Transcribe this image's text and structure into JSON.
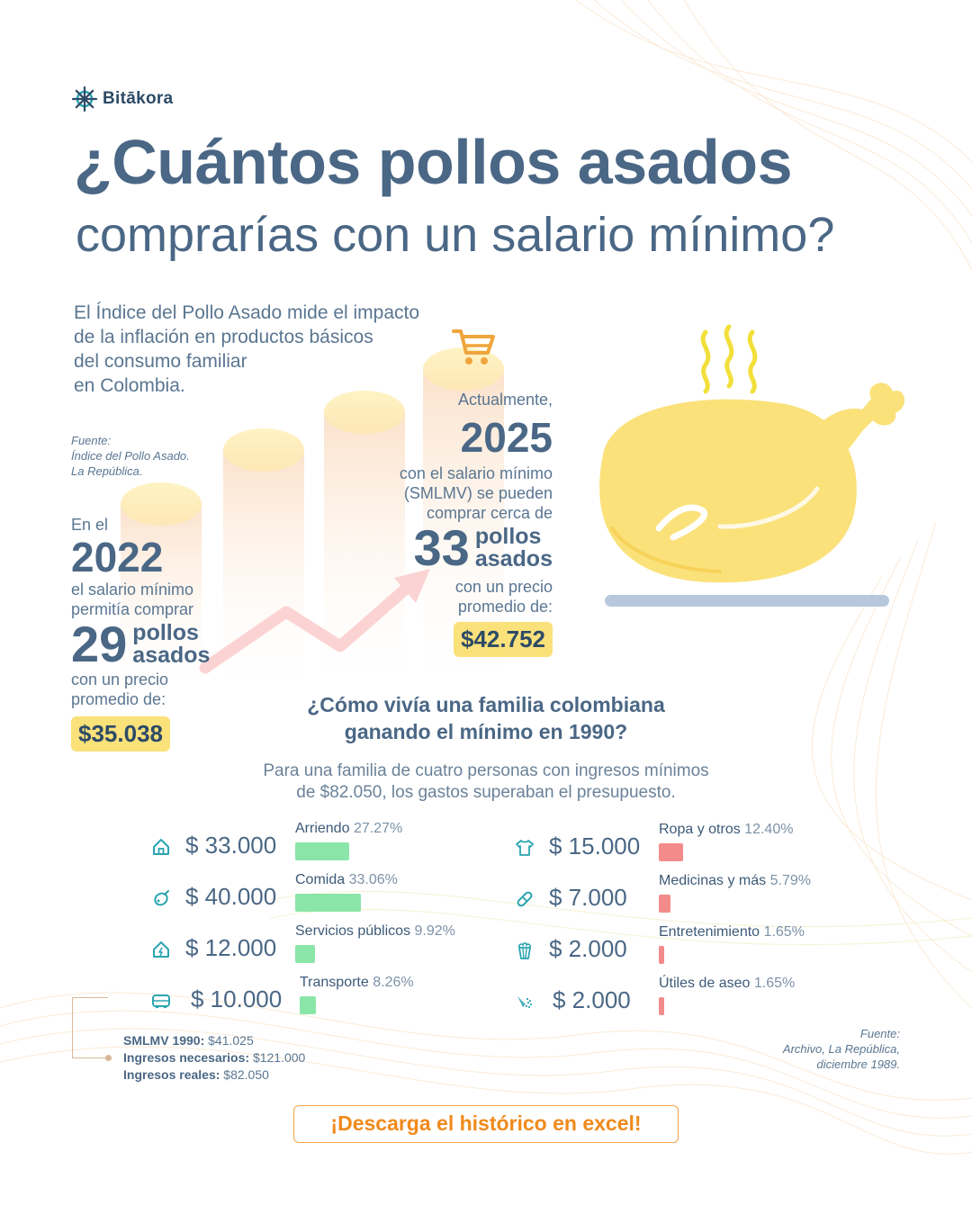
{
  "brand": {
    "name": "Bitākora"
  },
  "title": {
    "line1": "¿Cuántos pollos asados",
    "line2": "comprarías con un salario mínimo?"
  },
  "intro": [
    "El Índice del Pollo Asado mide el impacto",
    "de la inflación en productos básicos",
    "del consumo familiar",
    "en Colombia."
  ],
  "source_top": {
    "label": "Fuente:",
    "line1": "Índice del Pollo Asado.",
    "line2": "La República."
  },
  "y2022": {
    "prefix": "En el",
    "year": "2022",
    "text1": "el salario mínimo",
    "text2": "permitía comprar",
    "count": "29",
    "label1": "pollos",
    "label2": "asados",
    "price_text1": "con un precio",
    "price_text2": "promedio de:",
    "price": "$35.038"
  },
  "y2025": {
    "prefix": "Actualmente,",
    "year": "2025",
    "text1": "con el salario mínimo",
    "text2": "(SMLMV) se pueden",
    "text3": "comprar cerca de",
    "count": "33",
    "label1": "pollos",
    "label2": "asados",
    "price_text1": "con un precio",
    "price_text2": "promedio de:",
    "price": "$42.752"
  },
  "question": {
    "line1": "¿Cómo vivía una familia colombiana",
    "line2": "ganando el mínimo en 1990?",
    "sub1": "Para una familia de cuatro personas con ingresos mínimos",
    "sub2": "de $82.050, los gastos superaban el presupuesto."
  },
  "expenses": {
    "left": [
      {
        "icon": "house-icon",
        "amount": "$ 33.000",
        "category": "Arriendo",
        "percent": "27.27%",
        "value": 27.27
      },
      {
        "icon": "food-icon",
        "amount": "$ 40.000",
        "category": "Comida",
        "percent": "33.06%",
        "value": 33.06
      },
      {
        "icon": "utilities-icon",
        "amount": "$ 12.000",
        "category": "Servicios públicos",
        "percent": "9.92%",
        "value": 9.92
      },
      {
        "icon": "bus-icon",
        "amount": "$ 10.000",
        "category": "Transporte",
        "percent": "8.26%",
        "value": 8.26
      }
    ],
    "right": [
      {
        "icon": "shirt-icon",
        "amount": "$ 15.000",
        "category": "Ropa y otros",
        "percent": "12.40%",
        "value": 12.4
      },
      {
        "icon": "pill-icon",
        "amount": "$ 7.000",
        "category": "Medicinas y más",
        "percent": "5.79%",
        "value": 5.79
      },
      {
        "icon": "popcorn-icon",
        "amount": "$ 2.000",
        "category": "Entretenimiento",
        "percent": "1.65%",
        "value": 1.65
      },
      {
        "icon": "spray-icon",
        "amount": "$ 2.000",
        "category": "Útiles de aseo",
        "percent": "1.65%",
        "value": 1.65
      }
    ]
  },
  "summary": {
    "smlmv_label": "SMLMV 1990:",
    "smlmv_value": "$41.025",
    "needed_label": "Ingresos necesarios:",
    "needed_value": "$121.000",
    "real_label": "Ingresos reales:",
    "real_value": "$82.050"
  },
  "source_bottom": {
    "label": "Fuente:",
    "line1": "Archivo, La República,",
    "line2": "diciembre 1989."
  },
  "cta": {
    "label": "¡Descarga el histórico en excel!"
  },
  "colors": {
    "primary": "#4a6785",
    "badge": "#fbe17a",
    "green_bar": "#8ae6a8",
    "red_bar": "#f48b8b",
    "cta": "#f08a1c",
    "chicken": "#fbe17a"
  }
}
